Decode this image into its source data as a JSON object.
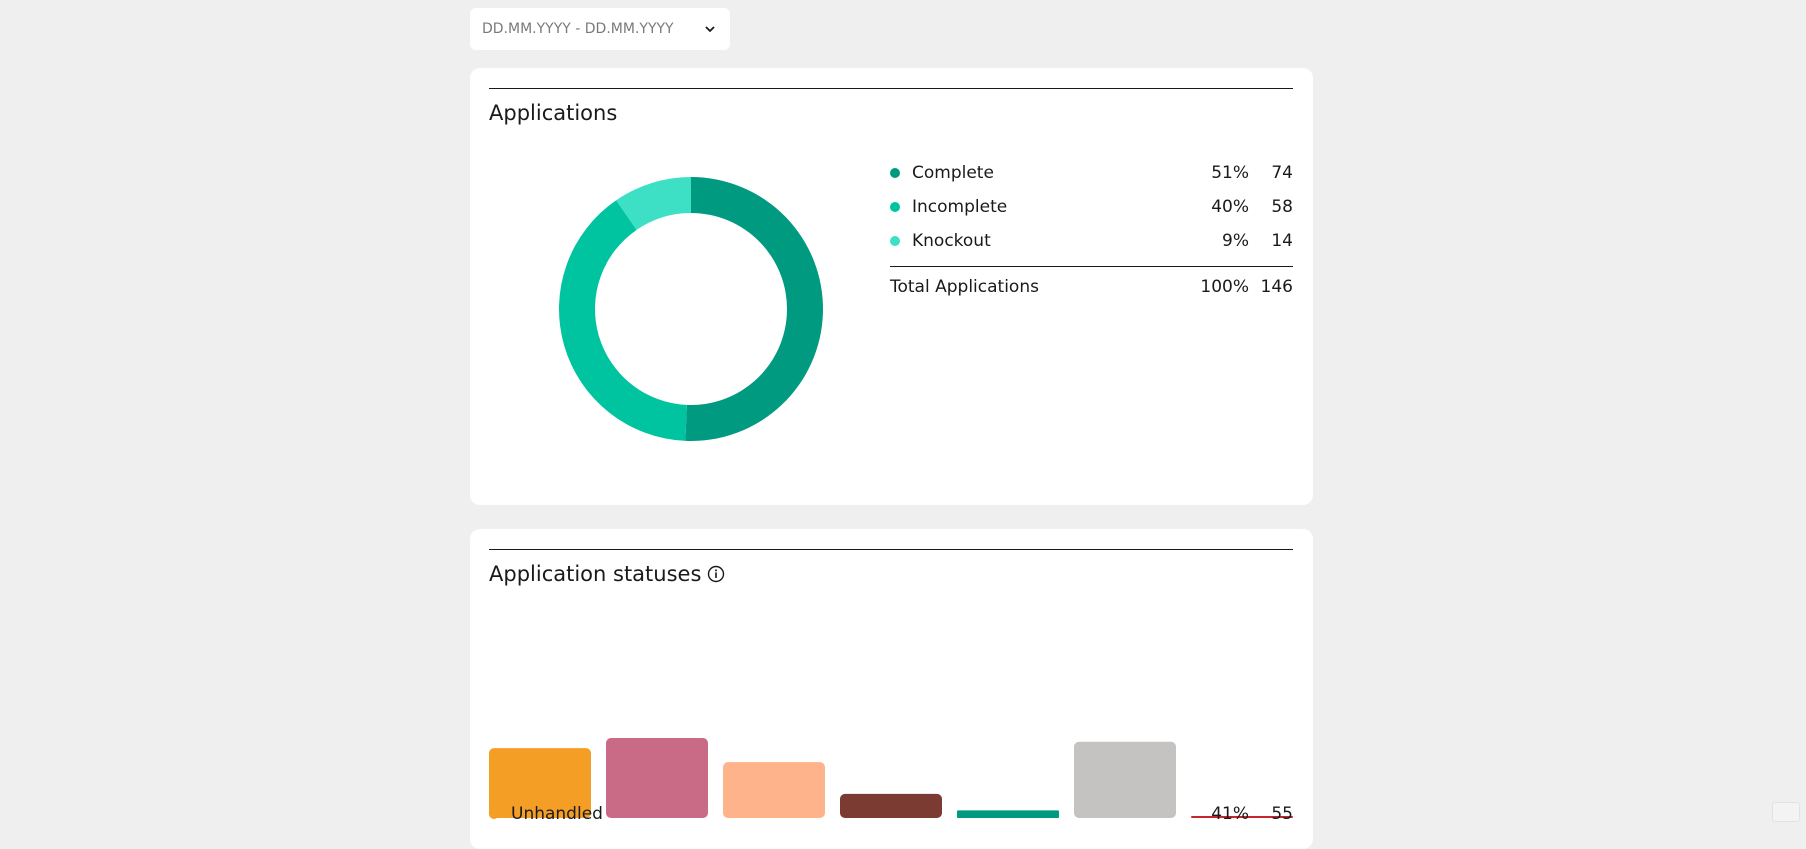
{
  "date_range": {
    "placeholder": "DD.MM.YYYY - DD.MM.YYYY"
  },
  "applications": {
    "title": "Applications",
    "items": [
      {
        "label": "Complete",
        "pct": "51%",
        "count": "74",
        "color": "#009a80"
      },
      {
        "label": "Incomplete",
        "pct": "40%",
        "count": "58",
        "color": "#00c4a0"
      },
      {
        "label": "Knockout",
        "pct": "9%",
        "count": "14",
        "color": "#3de0c4"
      }
    ],
    "total": {
      "label": "Total Applications",
      "pct": "100%",
      "count": "146"
    }
  },
  "statuses": {
    "title": "Application statuses",
    "first_item": {
      "label": "Unhandled",
      "pct": "41%",
      "count": "55",
      "color": "#f49e25"
    }
  },
  "chart_data": [
    {
      "type": "pie",
      "categories": [
        "Complete",
        "Incomplete",
        "Knockout"
      ],
      "values": [
        74,
        58,
        14
      ],
      "colors": [
        "#009a80",
        "#00c4a0",
        "#3de0c4"
      ],
      "title": "Applications"
    },
    {
      "type": "bar",
      "title": "Application statuses",
      "values": [
        55,
        63,
        44,
        19,
        6,
        60,
        1
      ],
      "colors": [
        "#f49e25",
        "#c96b86",
        "#ffb38b",
        "#7b3b33",
        "#009a80",
        "#c4c3c1",
        "#c7262d"
      ]
    }
  ]
}
